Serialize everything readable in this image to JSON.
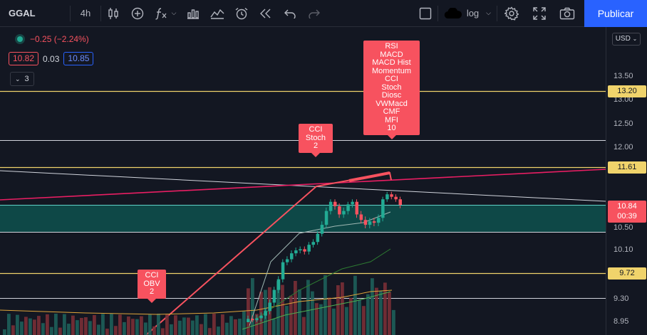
{
  "toolbar": {
    "symbol": "GGAL",
    "interval": "4h",
    "scale_label": "log",
    "publish_label": "Publicar"
  },
  "legend": {
    "change": "−0.25 (−2.24%)",
    "bid": "10.82",
    "spread": "0.03",
    "ask": "10.85",
    "indicators_count": "3"
  },
  "price_axis": {
    "currency": "USD",
    "ticks": [
      {
        "label": "13.50",
        "price": 13.5
      },
      {
        "label": "13.00",
        "price": 13.0
      },
      {
        "label": "12.50",
        "price": 12.5
      },
      {
        "label": "12.00",
        "price": 12.0
      },
      {
        "label": "10.50",
        "price": 10.5
      },
      {
        "label": "10.10",
        "price": 10.1
      },
      {
        "label": "9.30",
        "price": 9.3
      },
      {
        "label": "8.95",
        "price": 8.95
      }
    ],
    "level_tags": [
      {
        "label": "13.20",
        "price": 13.2
      },
      {
        "label": "11.61",
        "price": 11.61
      },
      {
        "label": "9.72",
        "price": 9.72
      }
    ],
    "last_price": "10.84",
    "countdown": "00:39"
  },
  "callouts": [
    {
      "lines": [
        "CCI",
        "OBV",
        "2"
      ]
    },
    {
      "lines": [
        "CCI",
        "Stoch",
        "2"
      ]
    },
    {
      "lines": [
        "RSI",
        "MACD",
        "MACD Hist",
        "Momentum",
        "CCI",
        "Stoch",
        "Diosc",
        "VWMacd",
        "CMF",
        "MFI",
        "10"
      ]
    }
  ],
  "colors": {
    "background": "#131722",
    "accent": "#2962ff",
    "up": "#22ab94",
    "down": "#f7525f",
    "level_line": "#f0d36b",
    "zone": "#0e4c4b"
  }
}
